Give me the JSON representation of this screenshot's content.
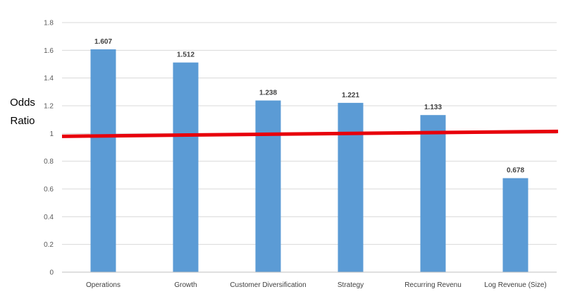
{
  "chart_data": {
    "type": "bar",
    "ylabel_lines": [
      "Odds",
      "Ratio"
    ],
    "categories": [
      "Operations",
      "Growth",
      "Customer Diversification",
      "Strategy",
      "Recurring Revenu",
      "Log Revenue (Size)"
    ],
    "values": [
      1.607,
      1.512,
      1.238,
      1.221,
      1.133,
      0.678
    ],
    "data_labels": [
      "1.607",
      "1.512",
      "1.238",
      "1.221",
      "1.133",
      "0.678"
    ],
    "y_ticks": [
      "0",
      "0.2",
      "0.4",
      "0.6",
      "0.8",
      "1",
      "1.2",
      "1.4",
      "1.6",
      "1.8"
    ],
    "ylim": [
      0,
      1.8
    ],
    "grid": true,
    "legend": "none",
    "reference_line": {
      "y": 1,
      "color": "#e8000b"
    },
    "colors": {
      "bar": "#5b9bd5",
      "grid": "#d9d9d9",
      "axis": "#bfbfbf",
      "reference": "#e8000b"
    }
  }
}
